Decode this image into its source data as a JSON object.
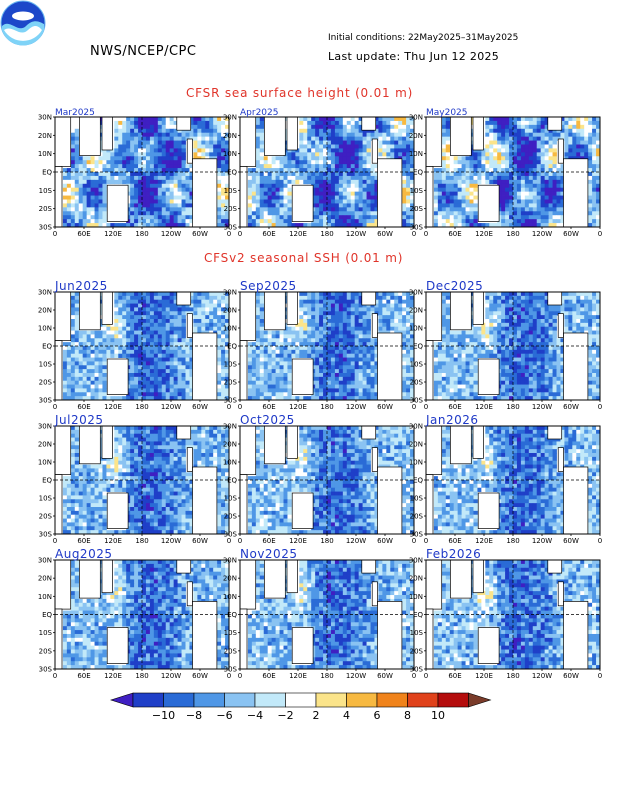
{
  "header": {
    "org": "NWS/NCEP/CPC",
    "initial_conditions": "Initial conditions: 22May2025–31May2025",
    "last_update": "Last update: Thu Jun 12 2025"
  },
  "sections": {
    "top_title": "CFSR sea surface height (0.01 m)",
    "mid_title": "CFSv2 seasonal SSH (0.01 m)"
  },
  "colors": {
    "negative": [
      "#3f1fc2",
      "#1f3fc8",
      "#2a6bd6",
      "#4f97e6",
      "#8ac3f2",
      "#c2e9f9"
    ],
    "neutral": "#ffffff",
    "positive": [
      "#fbe48a",
      "#f7b941",
      "#f0831b",
      "#e0421b",
      "#b40c0c",
      "#7a3b2a"
    ],
    "coast": "#000000"
  },
  "chart_data": [
    {
      "type": "heatmap",
      "title": "Mar2025",
      "group": "CFSR sea surface height (0.01 m)",
      "x_ticks": [
        "0",
        "60E",
        "120E",
        "180",
        "120W",
        "60W",
        "0"
      ],
      "y_ticks": [
        "30N",
        "20N",
        "10N",
        "EQ",
        "10S",
        "20S",
        "30S"
      ]
    },
    {
      "type": "heatmap",
      "title": "Apr2025",
      "group": "CFSR sea surface height (0.01 m)",
      "x_ticks": [
        "0",
        "60E",
        "120E",
        "180",
        "120W",
        "60W",
        "0"
      ],
      "y_ticks": [
        "30N",
        "20N",
        "10N",
        "EQ",
        "10S",
        "20S",
        "30S"
      ]
    },
    {
      "type": "heatmap",
      "title": "May2025",
      "group": "CFSR sea surface height (0.01 m)",
      "x_ticks": [
        "0",
        "60E",
        "120E",
        "180",
        "120W",
        "60W",
        "0"
      ],
      "y_ticks": [
        "30N",
        "20N",
        "10N",
        "EQ",
        "10S",
        "20S",
        "30S"
      ]
    },
    {
      "type": "heatmap",
      "title": "Jun2025",
      "group": "CFSv2 seasonal SSH (0.01 m)",
      "x_ticks": [
        "0",
        "60E",
        "120E",
        "180",
        "120W",
        "60W",
        "0"
      ],
      "y_ticks": [
        "30N",
        "20N",
        "10N",
        "EQ",
        "10S",
        "20S",
        "30S"
      ]
    },
    {
      "type": "heatmap",
      "title": "Sep2025",
      "group": "CFSv2 seasonal SSH (0.01 m)",
      "x_ticks": [
        "0",
        "60E",
        "120E",
        "180",
        "120W",
        "60W",
        "0"
      ],
      "y_ticks": [
        "30N",
        "20N",
        "10N",
        "EQ",
        "10S",
        "20S",
        "30S"
      ]
    },
    {
      "type": "heatmap",
      "title": "Dec2025",
      "group": "CFSv2 seasonal SSH (0.01 m)",
      "x_ticks": [
        "0",
        "60E",
        "120E",
        "180",
        "120W",
        "60W",
        "0"
      ],
      "y_ticks": [
        "30N",
        "20N",
        "10N",
        "EQ",
        "10S",
        "20S",
        "30S"
      ]
    },
    {
      "type": "heatmap",
      "title": "Jul2025",
      "group": "CFSv2 seasonal SSH (0.01 m)",
      "x_ticks": [
        "0",
        "60E",
        "120E",
        "180",
        "120W",
        "60W",
        "0"
      ],
      "y_ticks": [
        "30N",
        "20N",
        "10N",
        "EQ",
        "10S",
        "20S",
        "30S"
      ]
    },
    {
      "type": "heatmap",
      "title": "Oct2025",
      "group": "CFSv2 seasonal SSH (0.01 m)",
      "x_ticks": [
        "0",
        "60E",
        "120E",
        "180",
        "120W",
        "60W",
        "0"
      ],
      "y_ticks": [
        "30N",
        "20N",
        "10N",
        "EQ",
        "10S",
        "20S",
        "30S"
      ]
    },
    {
      "type": "heatmap",
      "title": "Jan2026",
      "group": "CFSv2 seasonal SSH (0.01 m)",
      "x_ticks": [
        "0",
        "60E",
        "120E",
        "180",
        "120W",
        "60W",
        "0"
      ],
      "y_ticks": [
        "30N",
        "20N",
        "10N",
        "EQ",
        "10S",
        "20S",
        "30S"
      ]
    },
    {
      "type": "heatmap",
      "title": "Aug2025",
      "group": "CFSv2 seasonal SSH (0.01 m)",
      "x_ticks": [
        "0",
        "60E",
        "120E",
        "180",
        "120W",
        "60W",
        "0"
      ],
      "y_ticks": [
        "30N",
        "20N",
        "10N",
        "EQ",
        "10S",
        "20S",
        "30S"
      ]
    },
    {
      "type": "heatmap",
      "title": "Nov2025",
      "group": "CFSv2 seasonal SSH (0.01 m)",
      "x_ticks": [
        "0",
        "60E",
        "120E",
        "180",
        "120W",
        "60W",
        "0"
      ],
      "y_ticks": [
        "30N",
        "20N",
        "10N",
        "EQ",
        "10S",
        "20S",
        "30S"
      ]
    },
    {
      "type": "heatmap",
      "title": "Feb2026",
      "group": "CFSv2 seasonal SSH (0.01 m)",
      "x_ticks": [
        "0",
        "60E",
        "120E",
        "180",
        "120W",
        "60W",
        "0"
      ],
      "y_ticks": [
        "30N",
        "20N",
        "10N",
        "EQ",
        "10S",
        "20S",
        "30S"
      ]
    }
  ],
  "colorbar": {
    "ticks": [
      "−10",
      "−8",
      "−6",
      "−4",
      "−2",
      "2",
      "4",
      "6",
      "8",
      "10"
    ]
  }
}
